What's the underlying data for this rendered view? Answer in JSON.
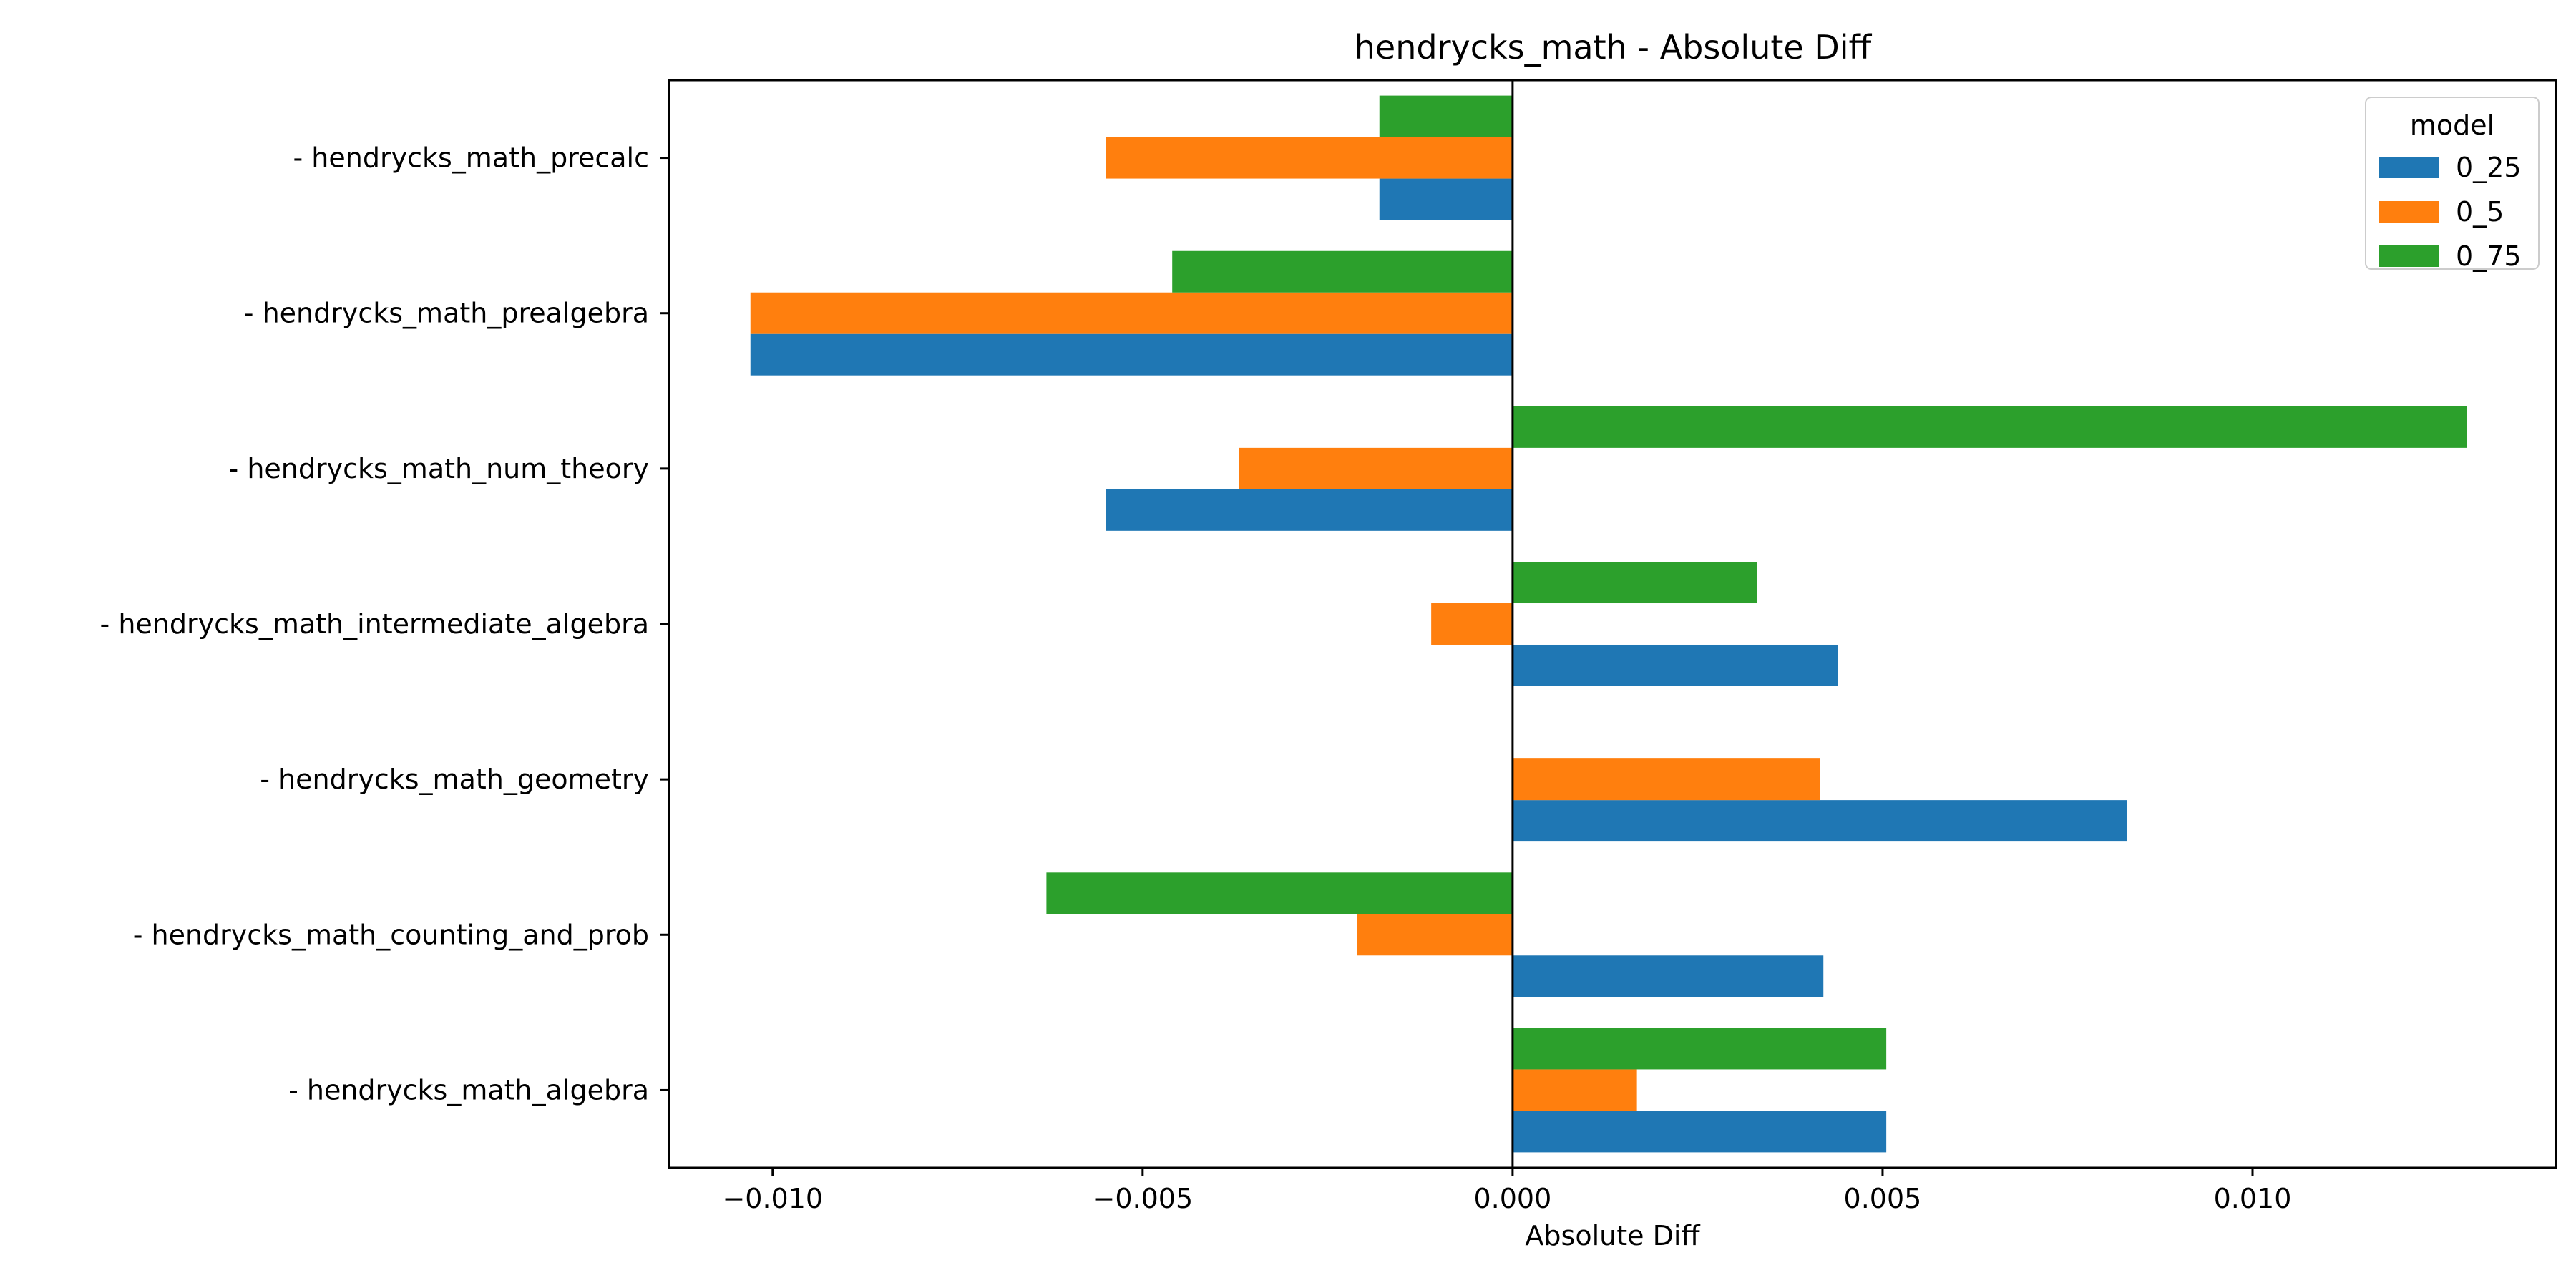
{
  "chart_data": {
    "type": "bar",
    "orientation": "horizontal",
    "title": "hendrycks_math - Absolute Diff",
    "xlabel": "Absolute Diff",
    "ylabel": "",
    "xlim": [
      -0.0114,
      0.0141
    ],
    "xticks": [
      -0.01,
      -0.005,
      0.0,
      0.005,
      0.01
    ],
    "xtick_labels": [
      "−0.010",
      "−0.005",
      "0.000",
      "0.005",
      "0.010"
    ],
    "grid": false,
    "zero_line": true,
    "categories": [
      "- hendrycks_math_algebra",
      "- hendrycks_math_counting_and_prob",
      "- hendrycks_math_geometry",
      "- hendrycks_math_intermediate_algebra",
      "- hendrycks_math_num_theory",
      "- hendrycks_math_prealgebra",
      "- hendrycks_math_precalc"
    ],
    "series": [
      {
        "name": "0_25",
        "color": "#1f77b4",
        "values": [
          0.00505,
          0.0042,
          0.0083,
          0.0044,
          -0.0055,
          -0.0103,
          -0.0018
        ]
      },
      {
        "name": "0_5",
        "color": "#ff7f0e",
        "values": [
          0.00168,
          -0.0021,
          0.00415,
          -0.0011,
          -0.0037,
          -0.0103,
          -0.0055
        ]
      },
      {
        "name": "0_75",
        "color": "#2ca02c",
        "values": [
          0.00505,
          -0.0063,
          0.0,
          0.0033,
          0.0129,
          -0.0046,
          -0.0018
        ]
      }
    ],
    "legend": {
      "title": "model",
      "placement": "top-right"
    }
  }
}
